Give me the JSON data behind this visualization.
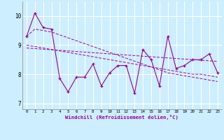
{
  "xlabel": "Windchill (Refroidissement éolien,°C)",
  "background_color": "#cceeff",
  "line_color": "#990099",
  "grid_color": "#aadddd",
  "x_values": [
    0,
    1,
    2,
    3,
    4,
    5,
    6,
    7,
    8,
    9,
    10,
    11,
    12,
    13,
    14,
    15,
    16,
    17,
    18,
    19,
    20,
    21,
    22,
    23
  ],
  "y_main": [
    9.3,
    10.1,
    9.6,
    9.55,
    7.85,
    7.4,
    7.9,
    7.9,
    8.35,
    7.6,
    8.05,
    8.3,
    8.3,
    7.35,
    8.85,
    8.5,
    7.6,
    9.3,
    8.2,
    8.3,
    8.5,
    8.5,
    8.7,
    8.05
  ],
  "y_steep": [
    9.3,
    9.55,
    9.5,
    9.45,
    9.35,
    9.25,
    9.15,
    9.05,
    8.95,
    8.85,
    8.75,
    8.65,
    8.55,
    8.45,
    8.35,
    8.25,
    8.15,
    8.05,
    8.0,
    7.95,
    7.9,
    7.85,
    7.8,
    7.75
  ],
  "y_medium": [
    9.0,
    8.95,
    8.9,
    8.85,
    8.8,
    8.75,
    8.7,
    8.65,
    8.6,
    8.55,
    8.5,
    8.45,
    8.4,
    8.35,
    8.3,
    8.25,
    8.2,
    8.15,
    8.1,
    8.05,
    8.0,
    8.0,
    7.95,
    7.9
  ],
  "y_shallow": [
    8.9,
    8.88,
    8.86,
    8.84,
    8.82,
    8.8,
    8.78,
    8.76,
    8.74,
    8.72,
    8.7,
    8.68,
    8.66,
    8.64,
    8.62,
    8.6,
    8.58,
    8.56,
    8.54,
    8.52,
    8.5,
    8.48,
    8.46,
    8.44
  ],
  "ylim": [
    6.8,
    10.5
  ],
  "xlim": [
    -0.5,
    23.5
  ],
  "yticks": [
    7,
    8,
    9,
    10
  ],
  "xticks": [
    0,
    1,
    2,
    3,
    4,
    5,
    6,
    7,
    8,
    9,
    10,
    11,
    12,
    13,
    14,
    15,
    16,
    17,
    18,
    19,
    20,
    21,
    22,
    23
  ]
}
